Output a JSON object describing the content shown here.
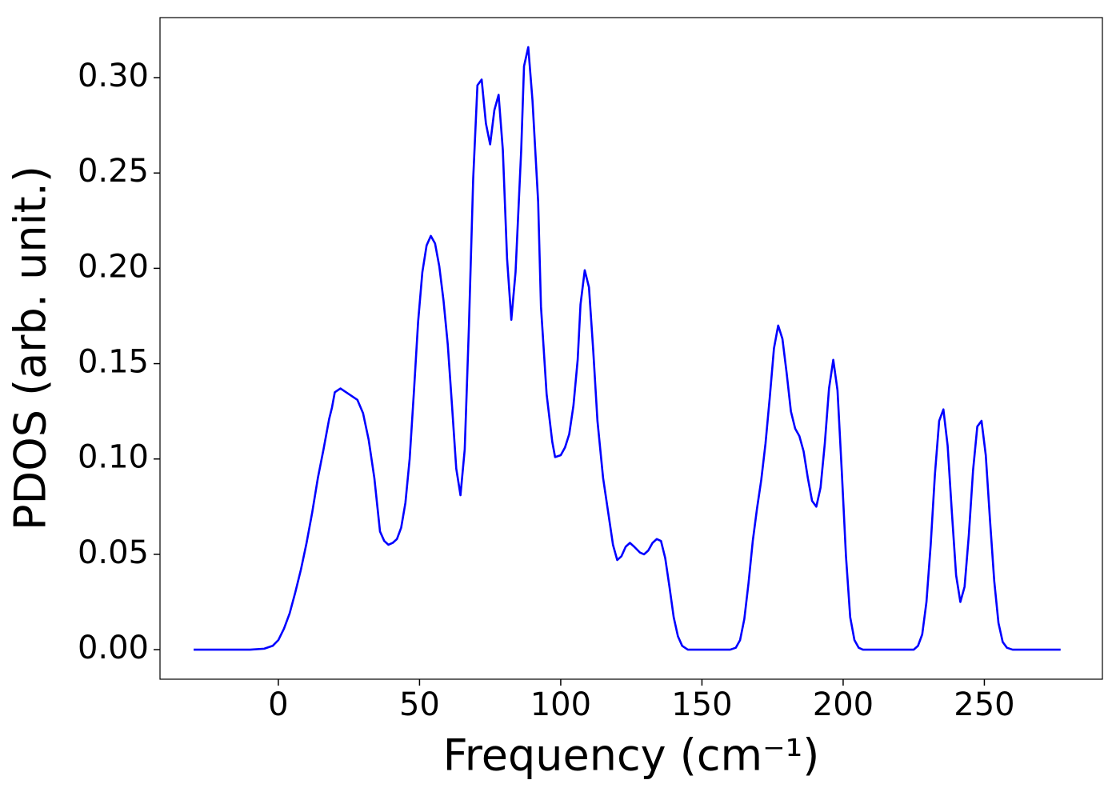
{
  "chart_data": {
    "type": "line",
    "xlabel": "Frequency (cm⁻¹)",
    "ylabel": "PDOS (arb. unit.)",
    "color": "#0000ff",
    "xlim": [
      -41.9,
      291.8
    ],
    "ylim": [
      -0.0155,
      0.3315
    ],
    "xticks": [
      0,
      50,
      100,
      150,
      200,
      250
    ],
    "yticks": [
      {
        "value": 0,
        "label": "0.00"
      },
      0.05,
      {
        "value": 0.1,
        "label": "0.10"
      },
      0.15,
      {
        "value": 0.2,
        "label": "0.20"
      },
      0.25,
      {
        "value": 0.3,
        "label": "0.30"
      }
    ],
    "x": [
      -30,
      -10,
      -5,
      -2,
      0,
      2,
      4,
      6,
      8,
      10,
      12,
      14,
      16,
      18,
      19,
      20,
      22,
      24,
      26,
      28,
      30,
      32,
      34,
      36,
      37.5,
      39,
      40.5,
      42,
      43.5,
      45,
      46.5,
      48,
      49.5,
      51,
      52.5,
      54,
      55.5,
      57,
      58.5,
      60,
      61.5,
      63,
      64.5,
      66,
      67.5,
      69,
      70.5,
      72,
      73.5,
      75,
      76.5,
      78,
      79.5,
      81,
      82.5,
      84,
      86,
      87,
      88.5,
      90,
      92,
      93,
      95,
      97,
      98,
      100,
      101.5,
      103,
      104.5,
      106,
      107,
      108.5,
      110,
      111.5,
      113,
      115,
      117,
      118.5,
      120,
      121.5,
      123,
      124.5,
      126,
      128,
      129.5,
      131,
      132.5,
      134,
      135.5,
      137,
      138.5,
      140,
      141.5,
      143,
      145,
      160,
      162,
      163.5,
      165,
      166.5,
      168,
      169.5,
      171,
      172.5,
      174,
      175.5,
      177,
      178.5,
      180,
      181.5,
      183,
      184.5,
      186,
      187.5,
      189,
      190.5,
      192,
      193.5,
      195,
      196.5,
      198,
      199.5,
      201,
      202.5,
      204,
      205.5,
      207,
      225,
      226.5,
      228,
      229.5,
      231,
      232.5,
      234,
      235.5,
      237,
      238.5,
      240,
      241.5,
      243,
      244.5,
      246,
      247.5,
      249,
      250.5,
      252,
      253.5,
      255,
      256.5,
      258,
      260,
      277
    ],
    "values": [
      0,
      0,
      0.0005,
      0.002,
      0.005,
      0.011,
      0.019,
      0.03,
      0.042,
      0.056,
      0.072,
      0.09,
      0.105,
      0.121,
      0.127,
      0.135,
      0.137,
      0.135,
      0.133,
      0.131,
      0.124,
      0.11,
      0.09,
      0.062,
      0.057,
      0.055,
      0.056,
      0.058,
      0.064,
      0.077,
      0.1,
      0.135,
      0.172,
      0.198,
      0.212,
      0.217,
      0.213,
      0.201,
      0.183,
      0.16,
      0.128,
      0.095,
      0.081,
      0.105,
      0.17,
      0.247,
      0.296,
      0.299,
      0.276,
      0.265,
      0.283,
      0.291,
      0.262,
      0.205,
      0.173,
      0.198,
      0.262,
      0.306,
      0.316,
      0.288,
      0.235,
      0.18,
      0.134,
      0.109,
      0.101,
      0.102,
      0.106,
      0.113,
      0.128,
      0.152,
      0.181,
      0.199,
      0.19,
      0.157,
      0.12,
      0.09,
      0.07,
      0.055,
      0.047,
      0.049,
      0.054,
      0.056,
      0.054,
      0.051,
      0.05,
      0.052,
      0.056,
      0.058,
      0.057,
      0.048,
      0.033,
      0.017,
      0.007,
      0.002,
      0,
      0,
      0.001,
      0.005,
      0.016,
      0.035,
      0.057,
      0.074,
      0.089,
      0.108,
      0.132,
      0.158,
      0.17,
      0.163,
      0.145,
      0.125,
      0.116,
      0.112,
      0.104,
      0.09,
      0.078,
      0.075,
      0.085,
      0.108,
      0.137,
      0.152,
      0.136,
      0.094,
      0.049,
      0.017,
      0.005,
      0.001,
      0,
      0,
      0.002,
      0.008,
      0.025,
      0.055,
      0.092,
      0.12,
      0.126,
      0.107,
      0.072,
      0.039,
      0.025,
      0.033,
      0.06,
      0.094,
      0.117,
      0.12,
      0.102,
      0.068,
      0.036,
      0.014,
      0.004,
      0.001,
      0,
      0
    ]
  }
}
